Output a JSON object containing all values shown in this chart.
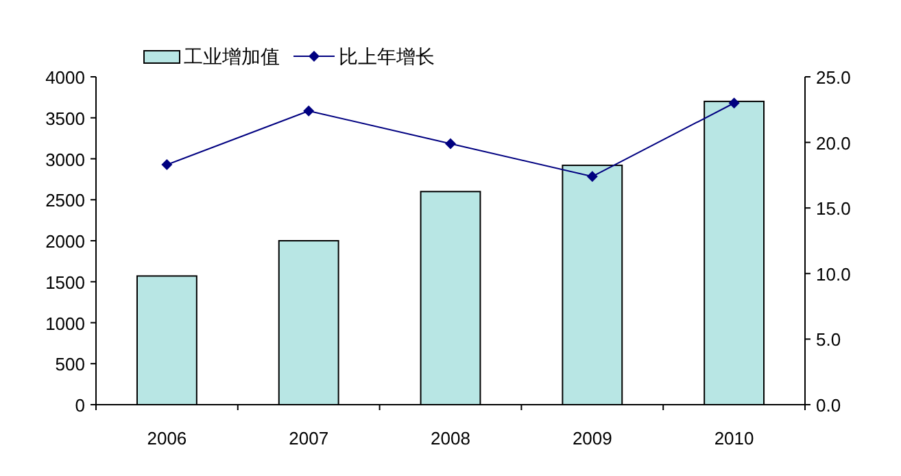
{
  "chart_data": {
    "type": "bar",
    "categories": [
      "2006",
      "2007",
      "2008",
      "2009",
      "2010"
    ],
    "series": [
      {
        "name": "工业增加值",
        "color": "#b8e6e4",
        "values": [
          1570,
          2000,
          2600,
          2920,
          3700
        ]
      },
      {
        "name": "比上年增长",
        "type": "line",
        "axis": "y2",
        "color": "#000080",
        "marker": "diamond",
        "values": [
          18.3,
          22.4,
          19.9,
          17.4,
          23.0
        ]
      }
    ],
    "ylim": [
      0,
      4000
    ],
    "yticks": [
      0,
      500,
      1000,
      1500,
      2000,
      2500,
      3000,
      3500,
      4000
    ],
    "y2lim": [
      0,
      25
    ],
    "y2ticks": [
      {
        "value": 0,
        "label": "0.0"
      },
      {
        "value": 5,
        "label": "5.0"
      },
      {
        "value": 10,
        "label": "10.0"
      },
      {
        "value": 15,
        "label": "15.0"
      },
      {
        "value": 20,
        "label": "20.0"
      },
      {
        "value": 25,
        "label": "25.0"
      }
    ],
    "legend": "top",
    "grid": false
  }
}
